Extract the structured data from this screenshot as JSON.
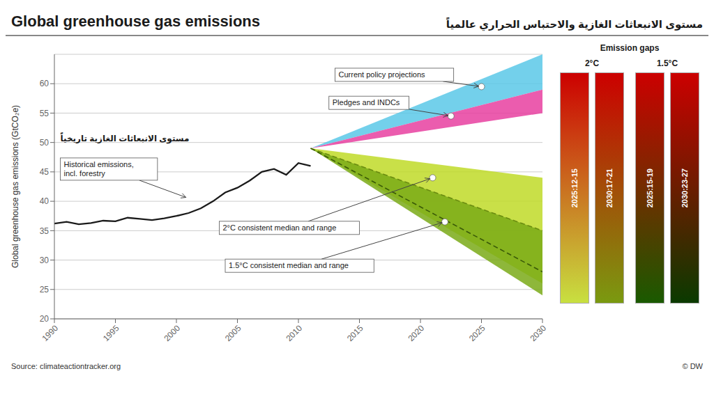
{
  "chart_data": {
    "type": "line",
    "title": "Global greenhouse gas emissions",
    "subtitle": "مستوى الانبعاثات الغازية والاحتباس الحراري عالمياً",
    "y_label": "Global greenhouse gas emissions (GtCO₂e)",
    "source": "Source: climateactiontracker.org",
    "copyright": "© DW",
    "xlim": [
      1990,
      2030
    ],
    "ylim": [
      20,
      65
    ],
    "xticks": [
      1990,
      1995,
      2000,
      2005,
      2010,
      2015,
      2020,
      2025,
      2030
    ],
    "yticks": [
      20,
      25,
      30,
      35,
      40,
      45,
      50,
      55,
      60
    ],
    "grid": true,
    "series": [
      {
        "type": "area",
        "color": "#5bc8e8",
        "x": [
          2011,
          2030
        ],
        "low": [
          49,
          59
        ],
        "high": [
          49,
          65
        ]
      },
      {
        "type": "area",
        "color": "#e840a0",
        "x": [
          2011,
          2030
        ],
        "low": [
          49,
          55
        ],
        "high": [
          49,
          59
        ]
      },
      {
        "type": "area",
        "color": "#c0da28",
        "x": [
          2011,
          2030
        ],
        "low": [
          49,
          26
        ],
        "high": [
          49,
          44
        ]
      },
      {
        "type": "area",
        "color": "#7aaa18",
        "x": [
          2011,
          2030
        ],
        "low": [
          49,
          24
        ],
        "high": [
          49,
          35
        ]
      },
      {
        "type": "line",
        "line_style": "dashed",
        "color": "#6b8c10",
        "x": [
          2011,
          2030
        ],
        "values": [
          49,
          35
        ]
      },
      {
        "type": "line",
        "line_style": "dashed",
        "color": "#3a5a08",
        "x": [
          2011,
          2030
        ],
        "values": [
          49,
          28
        ]
      },
      {
        "type": "line",
        "line_style": "solid",
        "color": "#1a1a1a",
        "x": [
          1990,
          1991,
          1992,
          1993,
          1994,
          1995,
          1996,
          1997,
          1998,
          1999,
          2000,
          2001,
          2002,
          2003,
          2004,
          2005,
          2006,
          2007,
          2008,
          2009,
          2010,
          2011
        ],
        "values": [
          36.2,
          36.5,
          36.1,
          36.3,
          36.7,
          36.6,
          37.2,
          37.0,
          36.8,
          37.1,
          37.5,
          38.0,
          38.8,
          40.0,
          41.5,
          42.3,
          43.5,
          45.0,
          45.5,
          44.5,
          46.5,
          46.0
        ]
      },
      {
        "type": "scatter",
        "marker": "circle",
        "color": "#ffffff",
        "x": [
          2025,
          2022.5,
          2021,
          2022
        ],
        "values": [
          59.5,
          54.5,
          44,
          36.5
        ]
      }
    ],
    "annotations": [
      {
        "text": "Historical emissions,\nincl. forestry",
        "x": 2001,
        "y": 40.5
      },
      {
        "text": "Current policy projections",
        "x": 2025,
        "y": 59.5
      },
      {
        "text": "Pledges and INDCs",
        "x": 2022.5,
        "y": 54.5
      },
      {
        "text": "2°C consistent median and range",
        "x": 2021,
        "y": 44
      },
      {
        "text": "1.5°C consistent median and range",
        "x": 2022,
        "y": 36.5
      },
      {
        "text": "مستوى الانبعاثات الغازية تاريخياً"
      }
    ],
    "emission_gaps": {
      "title": "Emission gaps",
      "groups": [
        {
          "name": "2°C",
          "bars": [
            {
              "label": "2025:12-15",
              "colors": [
                "#cc0000",
                "#c8e040"
              ]
            },
            {
              "label": "2030:17-21",
              "colors": [
                "#cc0000",
                "#7a9a10"
              ]
            }
          ]
        },
        {
          "name": "1.5°C",
          "bars": [
            {
              "label": "2025:15-19",
              "colors": [
                "#cc0000",
                "#1a5a00"
              ]
            },
            {
              "label": "2030:23-27",
              "colors": [
                "#cc0000",
                "#0a3a00"
              ]
            }
          ]
        }
      ]
    }
  }
}
